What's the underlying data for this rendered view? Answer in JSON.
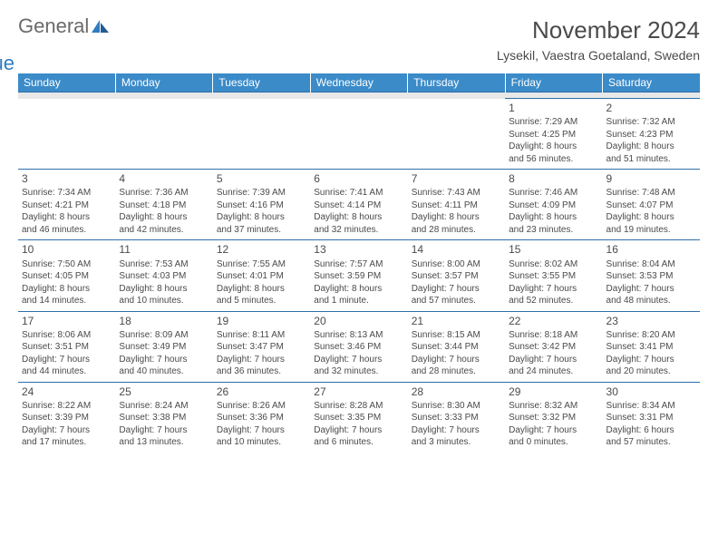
{
  "brand": {
    "word1": "General",
    "word2": "Blue"
  },
  "header": {
    "title": "November 2024",
    "location": "Lysekil, Vaestra Goetaland, Sweden"
  },
  "colors": {
    "header_bg": "#3b8bc9",
    "header_text": "#ffffff",
    "row_divider": "#2f6ea8",
    "spacer_bg": "#e8e8e8",
    "text": "#4a4a4a",
    "logo_gray": "#6a6a6a",
    "logo_blue": "#2f7cc0"
  },
  "calendar": {
    "columns": [
      "Sunday",
      "Monday",
      "Tuesday",
      "Wednesday",
      "Thursday",
      "Friday",
      "Saturday"
    ],
    "weeks": [
      [
        null,
        null,
        null,
        null,
        null,
        {
          "day": "1",
          "sunrise": "Sunrise: 7:29 AM",
          "sunset": "Sunset: 4:25 PM",
          "daylight1": "Daylight: 8 hours",
          "daylight2": "and 56 minutes."
        },
        {
          "day": "2",
          "sunrise": "Sunrise: 7:32 AM",
          "sunset": "Sunset: 4:23 PM",
          "daylight1": "Daylight: 8 hours",
          "daylight2": "and 51 minutes."
        }
      ],
      [
        {
          "day": "3",
          "sunrise": "Sunrise: 7:34 AM",
          "sunset": "Sunset: 4:21 PM",
          "daylight1": "Daylight: 8 hours",
          "daylight2": "and 46 minutes."
        },
        {
          "day": "4",
          "sunrise": "Sunrise: 7:36 AM",
          "sunset": "Sunset: 4:18 PM",
          "daylight1": "Daylight: 8 hours",
          "daylight2": "and 42 minutes."
        },
        {
          "day": "5",
          "sunrise": "Sunrise: 7:39 AM",
          "sunset": "Sunset: 4:16 PM",
          "daylight1": "Daylight: 8 hours",
          "daylight2": "and 37 minutes."
        },
        {
          "day": "6",
          "sunrise": "Sunrise: 7:41 AM",
          "sunset": "Sunset: 4:14 PM",
          "daylight1": "Daylight: 8 hours",
          "daylight2": "and 32 minutes."
        },
        {
          "day": "7",
          "sunrise": "Sunrise: 7:43 AM",
          "sunset": "Sunset: 4:11 PM",
          "daylight1": "Daylight: 8 hours",
          "daylight2": "and 28 minutes."
        },
        {
          "day": "8",
          "sunrise": "Sunrise: 7:46 AM",
          "sunset": "Sunset: 4:09 PM",
          "daylight1": "Daylight: 8 hours",
          "daylight2": "and 23 minutes."
        },
        {
          "day": "9",
          "sunrise": "Sunrise: 7:48 AM",
          "sunset": "Sunset: 4:07 PM",
          "daylight1": "Daylight: 8 hours",
          "daylight2": "and 19 minutes."
        }
      ],
      [
        {
          "day": "10",
          "sunrise": "Sunrise: 7:50 AM",
          "sunset": "Sunset: 4:05 PM",
          "daylight1": "Daylight: 8 hours",
          "daylight2": "and 14 minutes."
        },
        {
          "day": "11",
          "sunrise": "Sunrise: 7:53 AM",
          "sunset": "Sunset: 4:03 PM",
          "daylight1": "Daylight: 8 hours",
          "daylight2": "and 10 minutes."
        },
        {
          "day": "12",
          "sunrise": "Sunrise: 7:55 AM",
          "sunset": "Sunset: 4:01 PM",
          "daylight1": "Daylight: 8 hours",
          "daylight2": "and 5 minutes."
        },
        {
          "day": "13",
          "sunrise": "Sunrise: 7:57 AM",
          "sunset": "Sunset: 3:59 PM",
          "daylight1": "Daylight: 8 hours",
          "daylight2": "and 1 minute."
        },
        {
          "day": "14",
          "sunrise": "Sunrise: 8:00 AM",
          "sunset": "Sunset: 3:57 PM",
          "daylight1": "Daylight: 7 hours",
          "daylight2": "and 57 minutes."
        },
        {
          "day": "15",
          "sunrise": "Sunrise: 8:02 AM",
          "sunset": "Sunset: 3:55 PM",
          "daylight1": "Daylight: 7 hours",
          "daylight2": "and 52 minutes."
        },
        {
          "day": "16",
          "sunrise": "Sunrise: 8:04 AM",
          "sunset": "Sunset: 3:53 PM",
          "daylight1": "Daylight: 7 hours",
          "daylight2": "and 48 minutes."
        }
      ],
      [
        {
          "day": "17",
          "sunrise": "Sunrise: 8:06 AM",
          "sunset": "Sunset: 3:51 PM",
          "daylight1": "Daylight: 7 hours",
          "daylight2": "and 44 minutes."
        },
        {
          "day": "18",
          "sunrise": "Sunrise: 8:09 AM",
          "sunset": "Sunset: 3:49 PM",
          "daylight1": "Daylight: 7 hours",
          "daylight2": "and 40 minutes."
        },
        {
          "day": "19",
          "sunrise": "Sunrise: 8:11 AM",
          "sunset": "Sunset: 3:47 PM",
          "daylight1": "Daylight: 7 hours",
          "daylight2": "and 36 minutes."
        },
        {
          "day": "20",
          "sunrise": "Sunrise: 8:13 AM",
          "sunset": "Sunset: 3:46 PM",
          "daylight1": "Daylight: 7 hours",
          "daylight2": "and 32 minutes."
        },
        {
          "day": "21",
          "sunrise": "Sunrise: 8:15 AM",
          "sunset": "Sunset: 3:44 PM",
          "daylight1": "Daylight: 7 hours",
          "daylight2": "and 28 minutes."
        },
        {
          "day": "22",
          "sunrise": "Sunrise: 8:18 AM",
          "sunset": "Sunset: 3:42 PM",
          "daylight1": "Daylight: 7 hours",
          "daylight2": "and 24 minutes."
        },
        {
          "day": "23",
          "sunrise": "Sunrise: 8:20 AM",
          "sunset": "Sunset: 3:41 PM",
          "daylight1": "Daylight: 7 hours",
          "daylight2": "and 20 minutes."
        }
      ],
      [
        {
          "day": "24",
          "sunrise": "Sunrise: 8:22 AM",
          "sunset": "Sunset: 3:39 PM",
          "daylight1": "Daylight: 7 hours",
          "daylight2": "and 17 minutes."
        },
        {
          "day": "25",
          "sunrise": "Sunrise: 8:24 AM",
          "sunset": "Sunset: 3:38 PM",
          "daylight1": "Daylight: 7 hours",
          "daylight2": "and 13 minutes."
        },
        {
          "day": "26",
          "sunrise": "Sunrise: 8:26 AM",
          "sunset": "Sunset: 3:36 PM",
          "daylight1": "Daylight: 7 hours",
          "daylight2": "and 10 minutes."
        },
        {
          "day": "27",
          "sunrise": "Sunrise: 8:28 AM",
          "sunset": "Sunset: 3:35 PM",
          "daylight1": "Daylight: 7 hours",
          "daylight2": "and 6 minutes."
        },
        {
          "day": "28",
          "sunrise": "Sunrise: 8:30 AM",
          "sunset": "Sunset: 3:33 PM",
          "daylight1": "Daylight: 7 hours",
          "daylight2": "and 3 minutes."
        },
        {
          "day": "29",
          "sunrise": "Sunrise: 8:32 AM",
          "sunset": "Sunset: 3:32 PM",
          "daylight1": "Daylight: 7 hours",
          "daylight2": "and 0 minutes."
        },
        {
          "day": "30",
          "sunrise": "Sunrise: 8:34 AM",
          "sunset": "Sunset: 3:31 PM",
          "daylight1": "Daylight: 6 hours",
          "daylight2": "and 57 minutes."
        }
      ]
    ]
  }
}
